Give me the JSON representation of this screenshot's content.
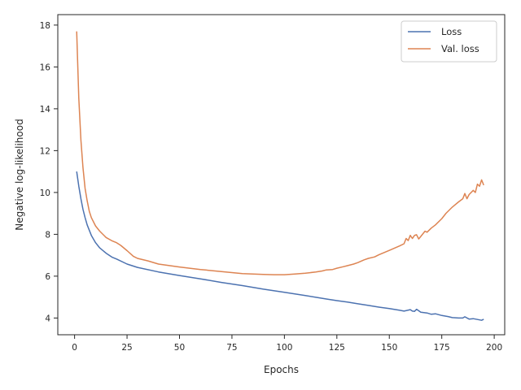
{
  "chart_data": {
    "type": "line",
    "xlabel": "Epochs",
    "ylabel": "Negative log-likelihood",
    "xlim": [
      -8,
      205
    ],
    "ylim": [
      3.2,
      18.5
    ],
    "xticks": [
      0,
      25,
      50,
      75,
      100,
      125,
      150,
      175,
      200
    ],
    "yticks": [
      4,
      6,
      8,
      10,
      12,
      14,
      16,
      18
    ],
    "grid": false,
    "legend_position": "top-right",
    "series": [
      {
        "name": "Loss",
        "color": "#4c72b0",
        "x": [
          1,
          2,
          3,
          4,
          5,
          6,
          8,
          10,
          12,
          15,
          18,
          20,
          25,
          30,
          40,
          50,
          60,
          70,
          80,
          90,
          100,
          110,
          115,
          120,
          125,
          130,
          135,
          140,
          145,
          150,
          155,
          157,
          160,
          161,
          162,
          163,
          165,
          168,
          170,
          172,
          175,
          178,
          180,
          183,
          185,
          186,
          188,
          190,
          192,
          194,
          195
        ],
        "y": [
          11.0,
          10.3,
          9.7,
          9.2,
          8.8,
          8.45,
          7.95,
          7.6,
          7.35,
          7.1,
          6.9,
          6.82,
          6.58,
          6.42,
          6.2,
          6.03,
          5.87,
          5.7,
          5.55,
          5.38,
          5.23,
          5.07,
          4.99,
          4.91,
          4.83,
          4.76,
          4.68,
          4.6,
          4.52,
          4.45,
          4.37,
          4.33,
          4.4,
          4.33,
          4.32,
          4.42,
          4.28,
          4.24,
          4.18,
          4.2,
          4.12,
          4.07,
          4.02,
          4.0,
          4.0,
          4.06,
          3.95,
          3.97,
          3.93,
          3.89,
          3.94
        ]
      },
      {
        "name": "Val. loss",
        "color": "#dd8452",
        "x": [
          1,
          2,
          3,
          4,
          5,
          6,
          7,
          8,
          10,
          12,
          15,
          18,
          20,
          22,
          25,
          28,
          30,
          35,
          40,
          50,
          60,
          70,
          80,
          90,
          95,
          100,
          105,
          110,
          115,
          118,
          120,
          123,
          125,
          128,
          130,
          133,
          135,
          138,
          140,
          143,
          145,
          150,
          155,
          157,
          158,
          159,
          160,
          161,
          162,
          163,
          164,
          165,
          167,
          168,
          170,
          172,
          175,
          177,
          180,
          183,
          185,
          186,
          187,
          188,
          190,
          191,
          192,
          193,
          194,
          195
        ],
        "y": [
          17.7,
          14.5,
          12.5,
          11.2,
          10.2,
          9.6,
          9.1,
          8.8,
          8.4,
          8.15,
          7.85,
          7.68,
          7.6,
          7.47,
          7.22,
          6.95,
          6.85,
          6.73,
          6.58,
          6.44,
          6.32,
          6.22,
          6.12,
          6.08,
          6.07,
          6.07,
          6.1,
          6.14,
          6.2,
          6.25,
          6.3,
          6.32,
          6.38,
          6.45,
          6.5,
          6.58,
          6.65,
          6.78,
          6.85,
          6.92,
          7.02,
          7.23,
          7.45,
          7.55,
          7.8,
          7.7,
          7.95,
          7.8,
          7.95,
          7.98,
          7.78,
          7.9,
          8.15,
          8.1,
          8.3,
          8.45,
          8.75,
          9.0,
          9.3,
          9.55,
          9.7,
          9.95,
          9.7,
          9.9,
          10.1,
          10.0,
          10.4,
          10.3,
          10.6,
          10.35
        ]
      }
    ]
  }
}
